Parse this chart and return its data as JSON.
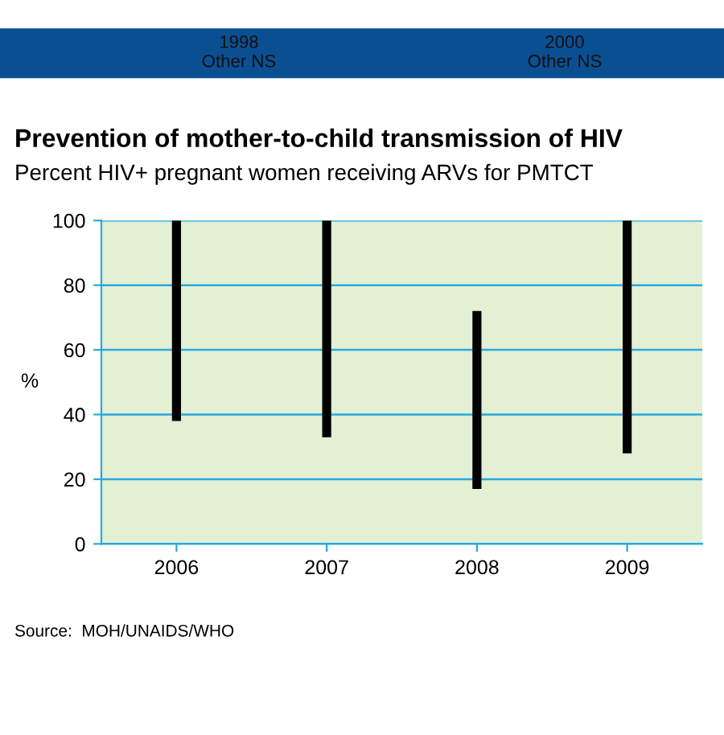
{
  "chart_data": {
    "type": "bar",
    "title": "Prevention of mother-to-child transmission of HIV",
    "subtitle": "Percent HIV+ pregnant women receiving ARVs for PMTCT",
    "ylabel": "%",
    "categories": [
      "2006",
      "2007",
      "2008",
      "2009"
    ],
    "base": [
      38,
      33,
      17,
      28
    ],
    "values": [
      62,
      67,
      55,
      72
    ],
    "color": "#000000",
    "ylim": [
      0,
      100
    ],
    "yticks": [
      0,
      20,
      40,
      60,
      80,
      100
    ],
    "grid": "y",
    "annotations": [
      "1998\nOther NS",
      "2000\nOther NS",
      "Source:  MOH/UNAIDS/WHO"
    ]
  }
}
